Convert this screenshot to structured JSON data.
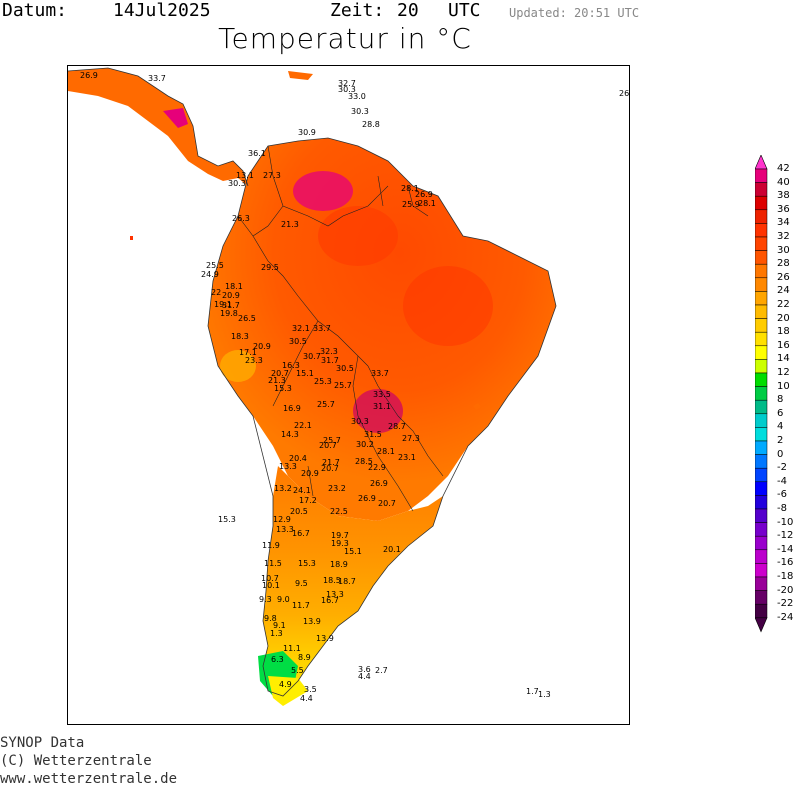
{
  "header": {
    "datum_label": "Datum:",
    "datum_value": "14Jul2025",
    "zeit_label": "Zeit:",
    "zeit_value": "20",
    "zeit_unit": "UTC",
    "updated": "Updated: 20:51 UTC",
    "title": "Temperatur in °C"
  },
  "credits": {
    "line1": "SYNOP Data",
    "line2": "(C) Wetterzentrale",
    "line3": "www.wetterzentrale.de"
  },
  "legend": {
    "ticks": [
      "42",
      "40",
      "38",
      "36",
      "34",
      "32",
      "30",
      "28",
      "26",
      "24",
      "22",
      "20",
      "18",
      "16",
      "14",
      "12",
      "10",
      "8",
      "6",
      "4",
      "2",
      "0",
      "-2",
      "-4",
      "-6",
      "-8",
      "-10",
      "-12",
      "-14",
      "-16",
      "-18",
      "-20",
      "-22",
      "-24"
    ],
    "colors": [
      "#ff33cc",
      "#e6007a",
      "#cc0033",
      "#dd0000",
      "#ee2200",
      "#ff3300",
      "#ff4400",
      "#ff5500",
      "#ff7700",
      "#ff8800",
      "#ffa500",
      "#ffbb00",
      "#ffcc00",
      "#ffe000",
      "#ffff00",
      "#ccff00",
      "#00dd00",
      "#00cc44",
      "#00bb88",
      "#00cccc",
      "#00dddd",
      "#00aaff",
      "#0077ff",
      "#0044ff",
      "#0000ff",
      "#2200dd",
      "#5500cc",
      "#7700cc",
      "#9900cc",
      "#bb00cc",
      "#cc00cc",
      "#990099",
      "#660066",
      "#440044"
    ]
  },
  "stations": [
    {
      "t": "26.9"
    },
    {
      "t": "33.7"
    },
    {
      "t": "32.7"
    },
    {
      "t": "30.3"
    },
    {
      "t": "33.0"
    },
    {
      "t": "30.3"
    },
    {
      "t": "28.8"
    },
    {
      "t": "30.9"
    },
    {
      "t": "26"
    },
    {
      "t": "36.1"
    },
    {
      "t": "13.1"
    },
    {
      "t": "27.3"
    },
    {
      "t": "30.3"
    },
    {
      "t": "28.1"
    },
    {
      "t": "26.9"
    },
    {
      "t": "25.9"
    },
    {
      "t": "28.1"
    },
    {
      "t": "26.3"
    },
    {
      "t": "21.3"
    },
    {
      "t": "25.5"
    },
    {
      "t": "24.9"
    },
    {
      "t": "29.5"
    },
    {
      "t": "18.1"
    },
    {
      "t": "22"
    },
    {
      "t": "20.9"
    },
    {
      "t": "19.1"
    },
    {
      "t": "31.7"
    },
    {
      "t": "19.8"
    },
    {
      "t": "26.5"
    },
    {
      "t": "32.1"
    },
    {
      "t": "33.7"
    },
    {
      "t": "18.3"
    },
    {
      "t": "30.5"
    },
    {
      "t": "20.9"
    },
    {
      "t": "17.1"
    },
    {
      "t": "23.3"
    },
    {
      "t": "32.3"
    },
    {
      "t": "30.7"
    },
    {
      "t": "31.7"
    },
    {
      "t": "16.3"
    },
    {
      "t": "20.7"
    },
    {
      "t": "15.1"
    },
    {
      "t": "30.5"
    },
    {
      "t": "33.7"
    },
    {
      "t": "21.3"
    },
    {
      "t": "15.3"
    },
    {
      "t": "25.3"
    },
    {
      "t": "25.7"
    },
    {
      "t": "33.5"
    },
    {
      "t": "16.9"
    },
    {
      "t": "25.7"
    },
    {
      "t": "31.1"
    },
    {
      "t": "22.1"
    },
    {
      "t": "30.3"
    },
    {
      "t": "28.7"
    },
    {
      "t": "14.3"
    },
    {
      "t": "25.7"
    },
    {
      "t": "31.5"
    },
    {
      "t": "27.3"
    },
    {
      "t": "20.7"
    },
    {
      "t": "30.2"
    },
    {
      "t": "28.1"
    },
    {
      "t": "20.4"
    },
    {
      "t": "21.7"
    },
    {
      "t": "28.5"
    },
    {
      "t": "23.1"
    },
    {
      "t": "13.3"
    },
    {
      "t": "20.7"
    },
    {
      "t": "22.9"
    },
    {
      "t": "20.9"
    },
    {
      "t": "13.2"
    },
    {
      "t": "24.1"
    },
    {
      "t": "23.2"
    },
    {
      "t": "26.9"
    },
    {
      "t": "17.2"
    },
    {
      "t": "26.9"
    },
    {
      "t": "20.7"
    },
    {
      "t": "20.5"
    },
    {
      "t": "22.5"
    },
    {
      "t": "12.9"
    },
    {
      "t": "15.3"
    },
    {
      "t": "13.3"
    },
    {
      "t": "19.7"
    },
    {
      "t": "16.7"
    },
    {
      "t": "11.9"
    },
    {
      "t": "19.3"
    },
    {
      "t": "15.1"
    },
    {
      "t": "20.1"
    },
    {
      "t": "11.5"
    },
    {
      "t": "15.3"
    },
    {
      "t": "18.9"
    },
    {
      "t": "10.7"
    },
    {
      "t": "18.5"
    },
    {
      "t": "18.7"
    },
    {
      "t": "10.1"
    },
    {
      "t": "9.5"
    },
    {
      "t": "9.3"
    },
    {
      "t": "9.0"
    },
    {
      "t": "13.3"
    },
    {
      "t": "16.7"
    },
    {
      "t": "11.7"
    },
    {
      "t": "9.8"
    },
    {
      "t": "13.9"
    },
    {
      "t": "9.1"
    },
    {
      "t": "1.3"
    },
    {
      "t": "13.9"
    },
    {
      "t": "11.1"
    },
    {
      "t": "8.9"
    },
    {
      "t": "3.6"
    },
    {
      "t": "2.7"
    },
    {
      "t": "4.4"
    },
    {
      "t": "6.3"
    },
    {
      "t": "5.5"
    },
    {
      "t": "4.9"
    },
    {
      "t": "3.5"
    },
    {
      "t": "4.4"
    },
    {
      "t": "1.7"
    },
    {
      "t": "1.3"
    }
  ]
}
